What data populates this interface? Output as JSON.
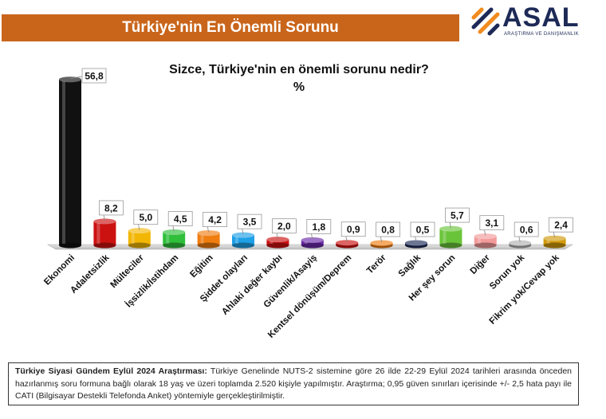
{
  "header": {
    "title": "Türkiye'nin En Önemli Sorunu"
  },
  "logo": {
    "name": "ASAL",
    "tagline": "ARAŞTIRMA VE DANIŞMANLIK"
  },
  "colors": {
    "header_bg": "#c9651b",
    "logo_orange": "#f18b1f",
    "logo_blue": "#1d2a57"
  },
  "chart_data": {
    "type": "bar",
    "title": "Sizce, Türkiye'nin en önemli sorunu nedir?",
    "subtitle": "%",
    "categories": [
      "Ekonomi",
      "Adaletsizlik",
      "Mülteciler",
      "İşsizlik/İstihdam",
      "Eğitim",
      "Şiddet olayları",
      "Ahlaki değer kaybı",
      "Güvenlik/Asayiş",
      "Kentsel dönüşüm/Deprem",
      "Terör",
      "Sağlık",
      "Her şey sorun",
      "Diğer",
      "Sorun yok",
      "Fikrim yok/Cevap yok"
    ],
    "values": [
      56.8,
      8.2,
      5.0,
      4.5,
      4.2,
      3.5,
      2.0,
      1.8,
      0.9,
      0.8,
      0.5,
      5.7,
      3.1,
      0.6,
      2.4
    ],
    "value_labels": [
      "56,8",
      "8,2",
      "5,0",
      "4,5",
      "4,2",
      "3,5",
      "2,0",
      "1,8",
      "0,9",
      "0,8",
      "0,5",
      "5,7",
      "3,1",
      "0,6",
      "2,4"
    ],
    "colors": [
      "#111111",
      "#cc1111",
      "#f2b705",
      "#2fbf3b",
      "#f07d10",
      "#1ea0e6",
      "#cc1111",
      "#6a2aa8",
      "#cc1111",
      "#f07d10",
      "#1d2a57",
      "#6ac43a",
      "#f39a9a",
      "#b0b0b0",
      "#d19a0a"
    ],
    "ylim": [
      0,
      60
    ],
    "grid": false,
    "legend": "none"
  },
  "footer": {
    "label": "Türkiye Siyasi Gündem Eylül 2024 Araştırması:",
    "text": " Türkiye Genelinde NUTS-2 sistemine göre 26 ilde 22-29 Eylül 2024 tarihleri arasında önceden hazırlanmış soru formuna bağlı olarak 18 yaş ve üzeri toplamda 2.520 kişiyle yapılmıştır. Araştırma; 0,95 güven sınırları içerisinde +/- 2,5 hata payı ile CATI (Bilgisayar Destekli Telefonda Anket) yöntemiyle gerçekleştirilmiştir."
  }
}
